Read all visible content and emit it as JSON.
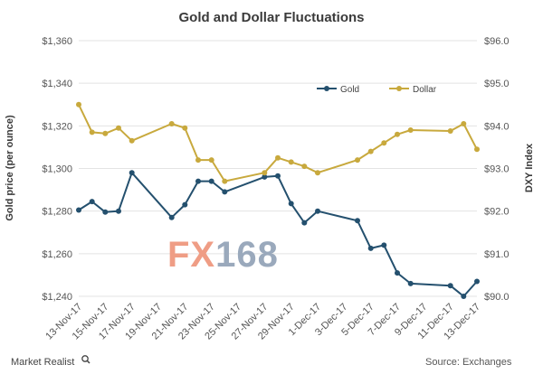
{
  "chart_data": {
    "type": "line",
    "title": "Gold and Dollar Fluctuations",
    "ylabel_left": "Gold price (per ounce)",
    "ylabel_right": "DXY Index",
    "x_tick_labels": [
      "13-Nov-17",
      "15-Nov-17",
      "17-Nov-17",
      "19-Nov-17",
      "21-Nov-17",
      "23-Nov-17",
      "25-Nov-17",
      "27-Nov-17",
      "29-Nov-17",
      "1-Dec-17",
      "3-Dec-17",
      "5-Dec-17",
      "7-Dec-17",
      "9-Dec-17",
      "11-Dec-17",
      "13-Dec-17"
    ],
    "left_axis": {
      "ylim": [
        1240,
        1360
      ],
      "ticks": [
        "$1,240",
        "$1,260",
        "$1,280",
        "$1,300",
        "$1,320",
        "$1,340",
        "$1,360"
      ]
    },
    "right_axis": {
      "ylim": [
        90.0,
        96.0
      ],
      "ticks": [
        "$90.0",
        "$91.0",
        "$92.0",
        "$93.0",
        "$94.0",
        "$95.0",
        "$96.0"
      ]
    },
    "grid": true,
    "legend_position": "top-right",
    "series": [
      {
        "name": "Gold",
        "axis": "left",
        "color": "#24506e",
        "x": [
          "13-Nov-17",
          "14-Nov-17",
          "15-Nov-17",
          "16-Nov-17",
          "17-Nov-17",
          "20-Nov-17",
          "21-Nov-17",
          "22-Nov-17",
          "23-Nov-17",
          "24-Nov-17",
          "27-Nov-17",
          "28-Nov-17",
          "29-Nov-17",
          "30-Nov-17",
          "1-Dec-17",
          "4-Dec-17",
          "5-Dec-17",
          "6-Dec-17",
          "7-Dec-17",
          "8-Dec-17",
          "11-Dec-17",
          "12-Dec-17",
          "13-Dec-17"
        ],
        "values": [
          1280.5,
          1284.5,
          1279.5,
          1280,
          1298,
          1277,
          1283,
          1294,
          1294,
          1289,
          1296,
          1296.5,
          1283.5,
          1274.5,
          1280,
          1275.5,
          1262.5,
          1264,
          1251,
          1246,
          1245,
          1240,
          1247
        ]
      },
      {
        "name": "Dollar",
        "axis": "right",
        "color": "#c8a93d",
        "x": [
          "13-Nov-17",
          "14-Nov-17",
          "15-Nov-17",
          "16-Nov-17",
          "17-Nov-17",
          "20-Nov-17",
          "21-Nov-17",
          "22-Nov-17",
          "23-Nov-17",
          "24-Nov-17",
          "27-Nov-17",
          "28-Nov-17",
          "29-Nov-17",
          "30-Nov-17",
          "1-Dec-17",
          "4-Dec-17",
          "5-Dec-17",
          "6-Dec-17",
          "7-Dec-17",
          "8-Dec-17",
          "11-Dec-17",
          "12-Dec-17",
          "13-Dec-17"
        ],
        "values": [
          94.5,
          93.85,
          93.82,
          93.95,
          93.65,
          94.05,
          93.95,
          93.2,
          93.2,
          92.7,
          92.9,
          93.25,
          93.15,
          93.05,
          92.9,
          93.2,
          93.4,
          93.6,
          93.8,
          93.9,
          93.88,
          94.05,
          93.45
        ]
      }
    ],
    "watermark": "FX168",
    "source": "Source: Exchanges",
    "brand": "Market Realist"
  }
}
